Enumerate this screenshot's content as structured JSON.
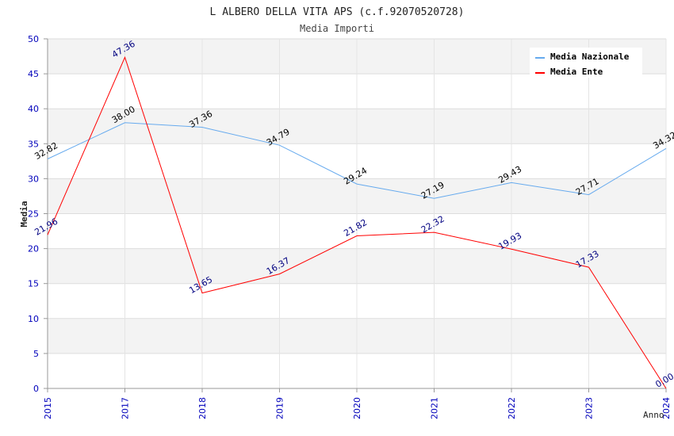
{
  "chart_data": {
    "type": "line",
    "title": "L ALBERO DELLA VITA APS (c.f.92070520728)",
    "subtitle": "Media Importi",
    "xlabel": "Anno",
    "ylabel": "Media",
    "categories": [
      "2015",
      "2017",
      "2018",
      "2019",
      "2020",
      "2021",
      "2022",
      "2023",
      "2024"
    ],
    "ylim": [
      0,
      50
    ],
    "yticks": [
      "0",
      "5",
      "10",
      "15",
      "20",
      "25",
      "30",
      "35",
      "40",
      "45",
      "50"
    ],
    "grid": true,
    "legend_position": "top-right",
    "series": [
      {
        "name": "Media Nazionale",
        "color": "#66aaee",
        "label_color": "#000000",
        "values": [
          32.82,
          38.0,
          37.36,
          34.79,
          29.24,
          27.19,
          29.43,
          27.71,
          34.32
        ],
        "labels": [
          "32.82",
          "38.00",
          "37.36",
          "34.79",
          "29.24",
          "27.19",
          "29.43",
          "27.71",
          "34.32"
        ]
      },
      {
        "name": "Media Ente",
        "color": "#ff0000",
        "label_color": "#000080",
        "values": [
          21.96,
          47.36,
          13.65,
          16.37,
          21.82,
          22.32,
          19.93,
          17.33,
          0.0
        ],
        "labels": [
          "21.96",
          "47.36",
          "13.65",
          "16.37",
          "21.82",
          "22.32",
          "19.93",
          "17.33",
          "0.00"
        ]
      }
    ]
  }
}
